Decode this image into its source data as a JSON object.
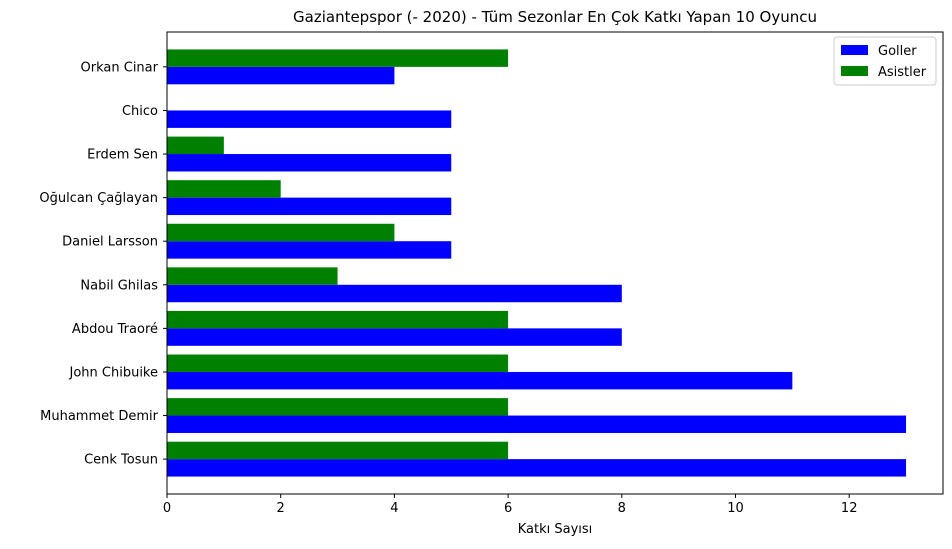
{
  "chart_data": {
    "type": "bar",
    "orientation": "horizontal",
    "title": "Gaziantepspor (- 2020) - Tüm Sezonlar En Çok Katkı Yapan 10 Oyuncu",
    "xlabel": "Katkı Sayısı",
    "ylabel": "",
    "xlim": [
      0,
      13.65
    ],
    "xticks": [
      0,
      2,
      4,
      6,
      8,
      10,
      12
    ],
    "grid": false,
    "legend_position": "top-right",
    "categories": [
      "Cenk Tosun",
      "Muhammet Demir",
      "John Chibuike",
      "Abdou Traoré",
      "Nabil Ghilas",
      "Daniel Larsson",
      "Oğulcan Çağlayan",
      "Erdem Sen",
      "Chico",
      "Orkan Cinar"
    ],
    "series": [
      {
        "name": "Goller",
        "color": "#0000ff",
        "values": [
          13,
          13,
          11,
          8,
          8,
          5,
          5,
          5,
          5,
          4
        ]
      },
      {
        "name": "Asistler",
        "color": "#008000",
        "values": [
          6,
          6,
          6,
          6,
          3,
          4,
          2,
          1,
          0,
          6
        ]
      }
    ]
  }
}
